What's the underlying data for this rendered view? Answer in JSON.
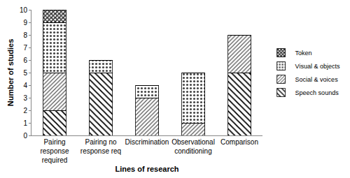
{
  "chart_data": {
    "type": "bar",
    "stacked": true,
    "x_label": "Lines of research",
    "y_label": "Number of studies",
    "categories": [
      "Pairing response required",
      "Pairing no response req",
      "Discrimination",
      "Observational conditioning",
      "Comparison"
    ],
    "series": [
      {
        "name": "Speech sounds",
        "color": "#000000",
        "values": [
          2,
          5,
          0,
          0,
          5
        ]
      },
      {
        "name": "Social & voices",
        "color": "#555555",
        "values": [
          3,
          0,
          3,
          1,
          3
        ]
      },
      {
        "name": "Visual & objects",
        "color": "#444444",
        "values": [
          4,
          1,
          1,
          4,
          0
        ]
      },
      {
        "name": "Token",
        "color": "#222222",
        "values": [
          1,
          0,
          0,
          0,
          0
        ]
      }
    ],
    "ylim": [
      0,
      10
    ],
    "yticks": [
      0,
      1,
      2,
      3,
      4,
      5,
      6,
      7,
      8,
      9,
      10
    ],
    "grid": false,
    "legend": "right"
  }
}
